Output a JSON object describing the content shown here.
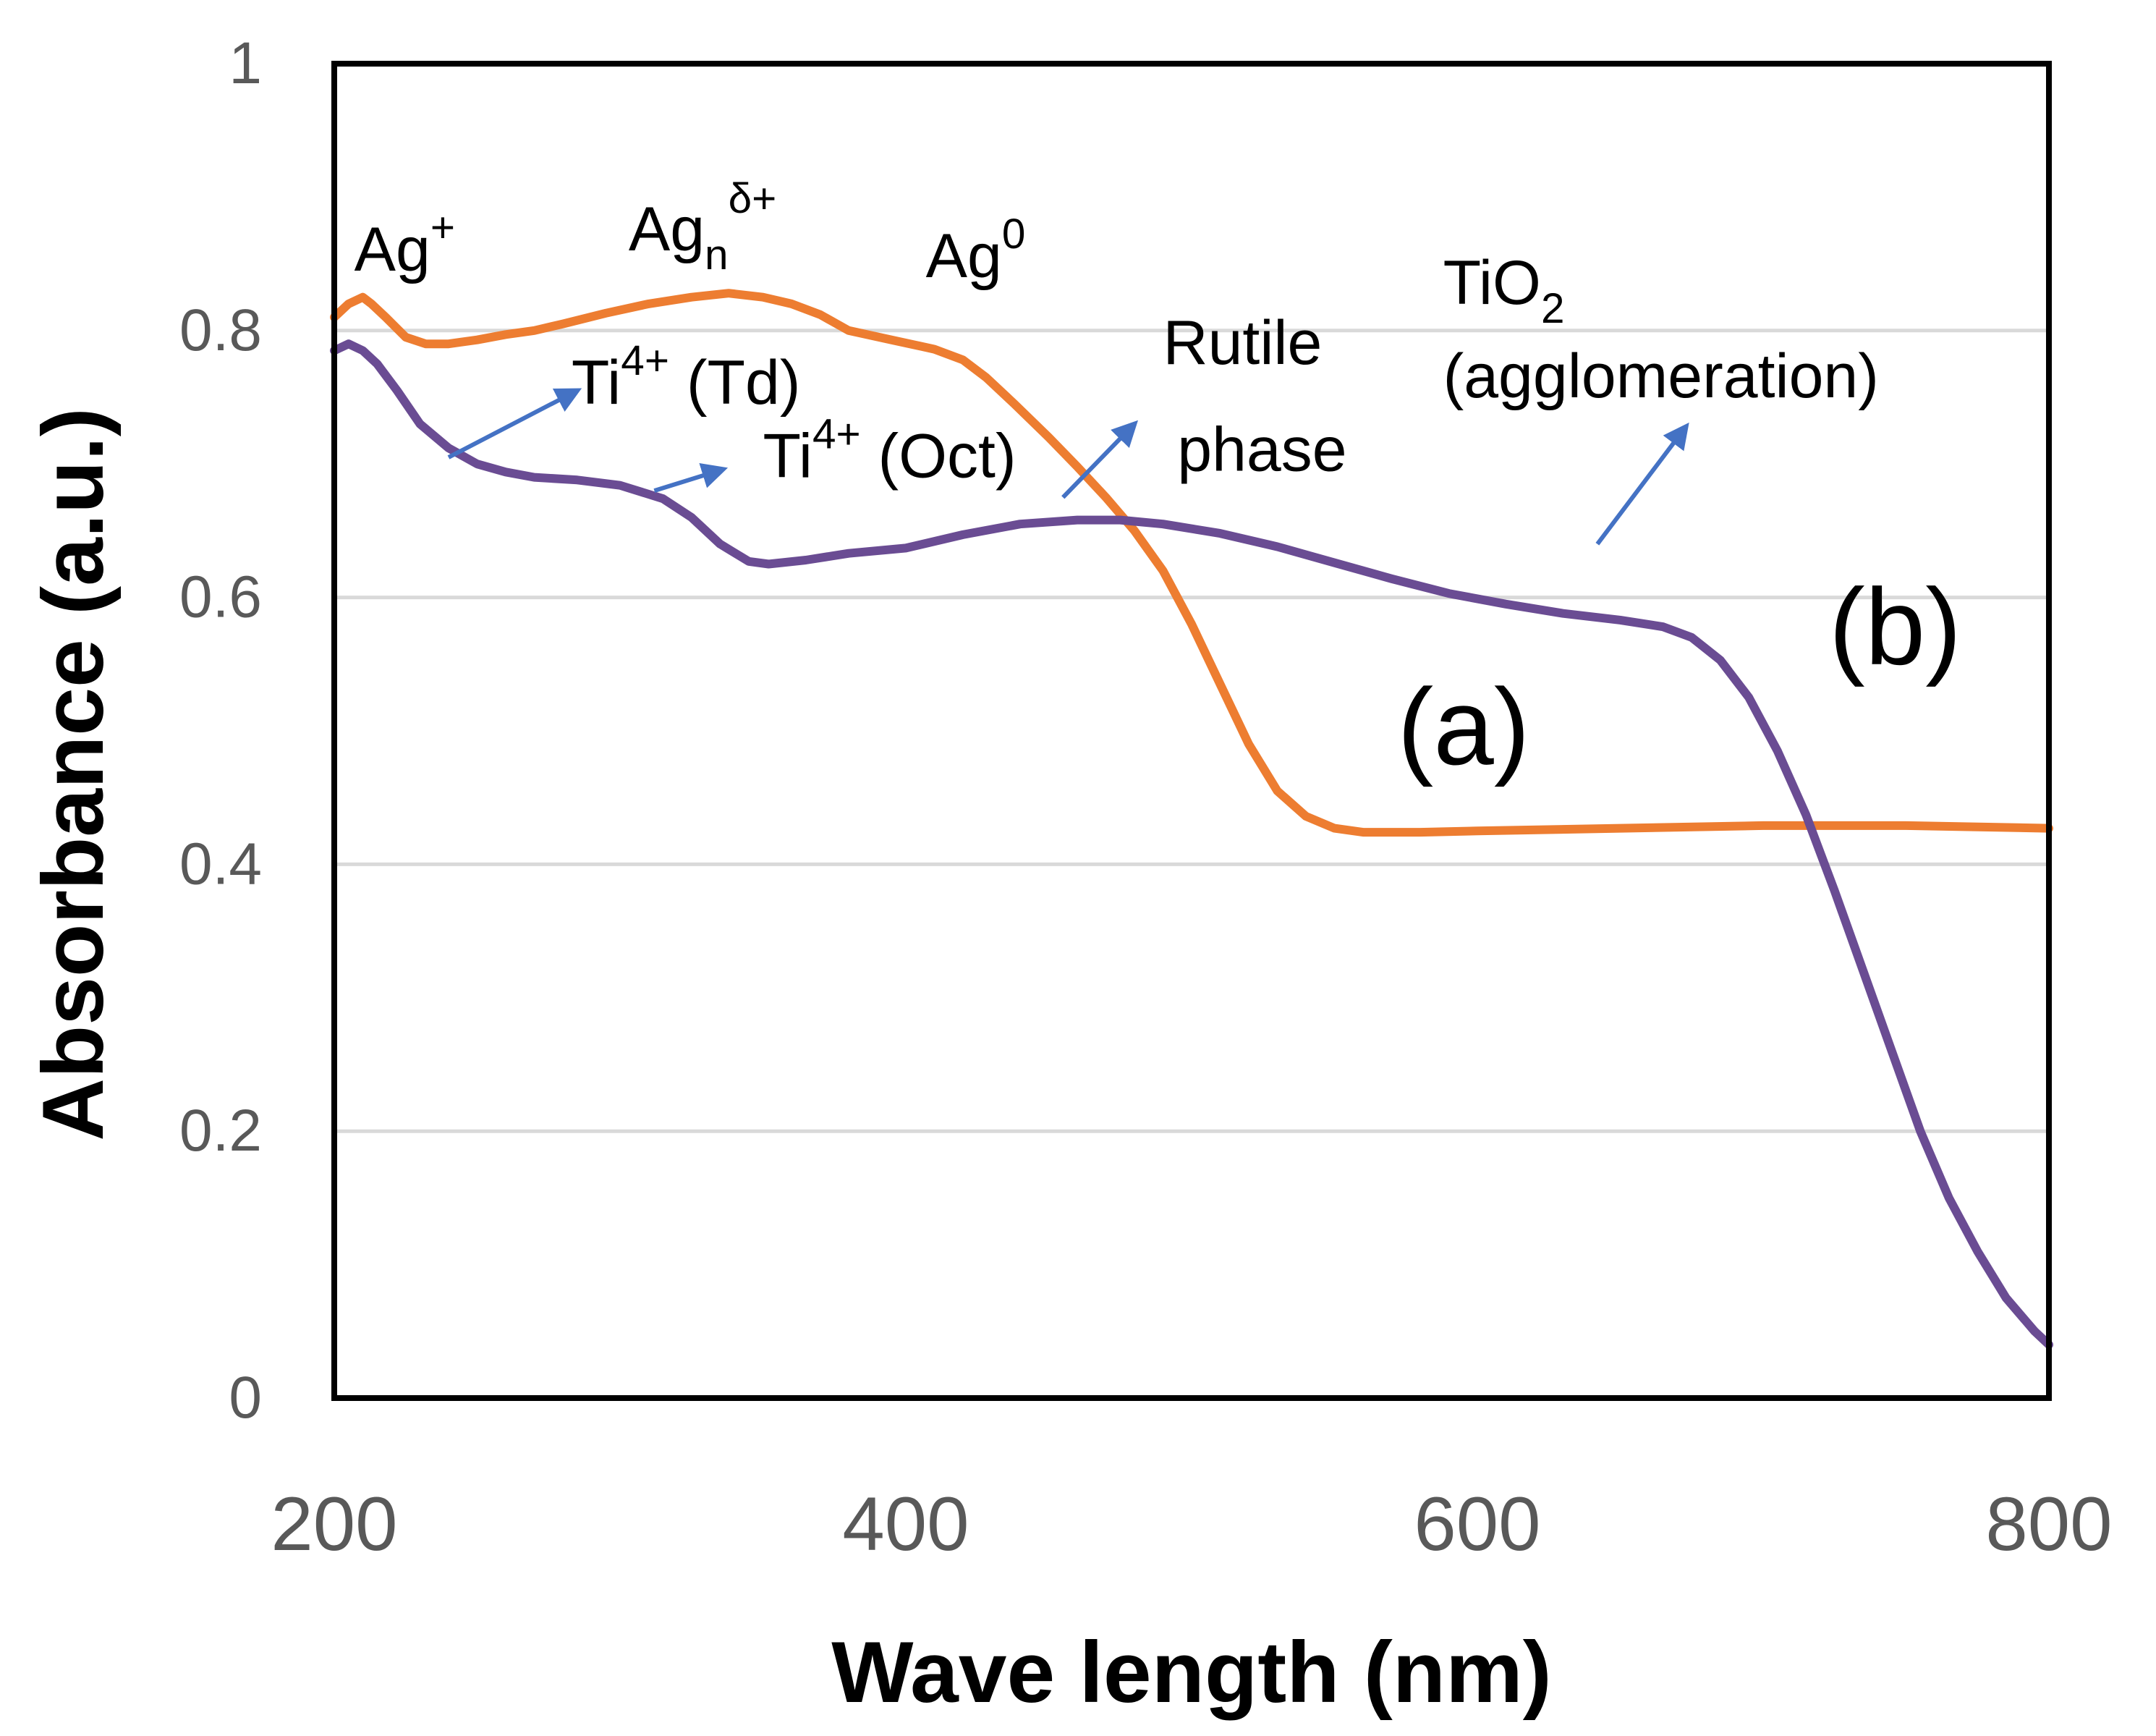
{
  "chart_data": {
    "type": "line",
    "title": "",
    "xlabel": "Wave length (nm)",
    "ylabel": "Absorbance (a.u.)",
    "xlim": [
      200,
      800
    ],
    "ylim": [
      0,
      1
    ],
    "x_ticks": [
      "200",
      "400",
      "600",
      "800"
    ],
    "y_ticks": [
      "0",
      "0.2",
      "0.4",
      "0.6",
      "0.8",
      "1"
    ],
    "grid": "horizontal",
    "series": [
      {
        "name": "(a)",
        "color": "#ED7D31",
        "points": [
          [
            200,
            0.81
          ],
          [
            205,
            0.82
          ],
          [
            210,
            0.825
          ],
          [
            213,
            0.82
          ],
          [
            218,
            0.81
          ],
          [
            225,
            0.795
          ],
          [
            232,
            0.79
          ],
          [
            240,
            0.79
          ],
          [
            250,
            0.793
          ],
          [
            260,
            0.797
          ],
          [
            270,
            0.8
          ],
          [
            280,
            0.805
          ],
          [
            295,
            0.813
          ],
          [
            310,
            0.82
          ],
          [
            325,
            0.825
          ],
          [
            338,
            0.828
          ],
          [
            350,
            0.825
          ],
          [
            360,
            0.82
          ],
          [
            370,
            0.812
          ],
          [
            380,
            0.8
          ],
          [
            395,
            0.793
          ],
          [
            410,
            0.786
          ],
          [
            420,
            0.778
          ],
          [
            428,
            0.765
          ],
          [
            438,
            0.745
          ],
          [
            450,
            0.72
          ],
          [
            460,
            0.698
          ],
          [
            470,
            0.675
          ],
          [
            480,
            0.65
          ],
          [
            490,
            0.62
          ],
          [
            500,
            0.58
          ],
          [
            510,
            0.535
          ],
          [
            520,
            0.49
          ],
          [
            530,
            0.455
          ],
          [
            540,
            0.436
          ],
          [
            550,
            0.427
          ],
          [
            560,
            0.424
          ],
          [
            580,
            0.424
          ],
          [
            600,
            0.425
          ],
          [
            650,
            0.427
          ],
          [
            700,
            0.429
          ],
          [
            750,
            0.429
          ],
          [
            800,
            0.427
          ]
        ]
      },
      {
        "name": "(b)",
        "color": "#6A4C93",
        "points": [
          [
            200,
            0.785
          ],
          [
            205,
            0.79
          ],
          [
            210,
            0.785
          ],
          [
            215,
            0.775
          ],
          [
            222,
            0.755
          ],
          [
            230,
            0.73
          ],
          [
            240,
            0.712
          ],
          [
            250,
            0.7
          ],
          [
            260,
            0.694
          ],
          [
            270,
            0.69
          ],
          [
            285,
            0.688
          ],
          [
            300,
            0.684
          ],
          [
            315,
            0.674
          ],
          [
            325,
            0.66
          ],
          [
            335,
            0.64
          ],
          [
            345,
            0.627
          ],
          [
            352,
            0.625
          ],
          [
            365,
            0.628
          ],
          [
            380,
            0.633
          ],
          [
            400,
            0.637
          ],
          [
            420,
            0.647
          ],
          [
            440,
            0.655
          ],
          [
            460,
            0.658
          ],
          [
            475,
            0.658
          ],
          [
            490,
            0.655
          ],
          [
            510,
            0.648
          ],
          [
            530,
            0.638
          ],
          [
            550,
            0.626
          ],
          [
            570,
            0.614
          ],
          [
            590,
            0.603
          ],
          [
            610,
            0.595
          ],
          [
            630,
            0.588
          ],
          [
            650,
            0.583
          ],
          [
            665,
            0.578
          ],
          [
            675,
            0.57
          ],
          [
            685,
            0.553
          ],
          [
            695,
            0.525
          ],
          [
            705,
            0.485
          ],
          [
            715,
            0.437
          ],
          [
            725,
            0.38
          ],
          [
            735,
            0.32
          ],
          [
            745,
            0.26
          ],
          [
            755,
            0.2
          ],
          [
            765,
            0.15
          ],
          [
            775,
            0.11
          ],
          [
            785,
            0.075
          ],
          [
            795,
            0.05
          ],
          [
            800,
            0.04
          ]
        ]
      }
    ],
    "annotations": [
      {
        "id": "ag-plus",
        "text": "Ag",
        "sup": "+",
        "sub": "",
        "x": 207,
        "y": 0.845
      },
      {
        "id": "ag-n-delta",
        "text": "Ag",
        "sub": "n",
        "sup": "δ+",
        "x": 303,
        "y": 0.86
      },
      {
        "id": "ag-zero",
        "text": "Ag",
        "sup": "0",
        "sub": "",
        "x": 407,
        "y": 0.84
      },
      {
        "id": "tio2",
        "text": "TiO",
        "sub": "2",
        "sup": "",
        "x": 588,
        "y": 0.82
      },
      {
        "id": "agglomeration",
        "text": "(agglomeration)",
        "sub": "",
        "sup": "",
        "x": 588,
        "y": 0.75
      },
      {
        "id": "rutile",
        "text": "Rutile",
        "sub": "",
        "sup": "",
        "x": 490,
        "y": 0.775
      },
      {
        "id": "phase",
        "text": "phase",
        "sub": "",
        "sup": "",
        "x": 495,
        "y": 0.695
      },
      {
        "id": "ti-td",
        "text": "Ti",
        "sup": "4+",
        "after": " (Td)",
        "sub": "",
        "x": 283,
        "y": 0.745
      },
      {
        "id": "ti-oct",
        "text": "Ti",
        "sup": "4+",
        "after": " (Oct)",
        "sub": "",
        "x": 350,
        "y": 0.69
      },
      {
        "id": "label-a",
        "text": "(a)",
        "sub": "",
        "sup": "",
        "x": 572,
        "y": 0.475
      },
      {
        "id": "label-b",
        "text": "(b)",
        "sub": "",
        "sup": "",
        "x": 723,
        "y": 0.55
      }
    ],
    "arrows": [
      {
        "id": "arrow-td",
        "from": [
          240,
          0.705
        ],
        "to": [
          285,
          0.755
        ]
      },
      {
        "id": "arrow-oct",
        "from": [
          312,
          0.68
        ],
        "to": [
          336,
          0.696
        ]
      },
      {
        "id": "arrow-rutile",
        "from": [
          455,
          0.675
        ],
        "to": [
          480,
          0.73
        ]
      },
      {
        "id": "arrow-tio2",
        "from": [
          642,
          0.64
        ],
        "to": [
          673,
          0.728
        ]
      }
    ],
    "colors": {
      "arrow": "#4472C4",
      "grid": "#D9D9D9",
      "frame": "#000000"
    }
  }
}
